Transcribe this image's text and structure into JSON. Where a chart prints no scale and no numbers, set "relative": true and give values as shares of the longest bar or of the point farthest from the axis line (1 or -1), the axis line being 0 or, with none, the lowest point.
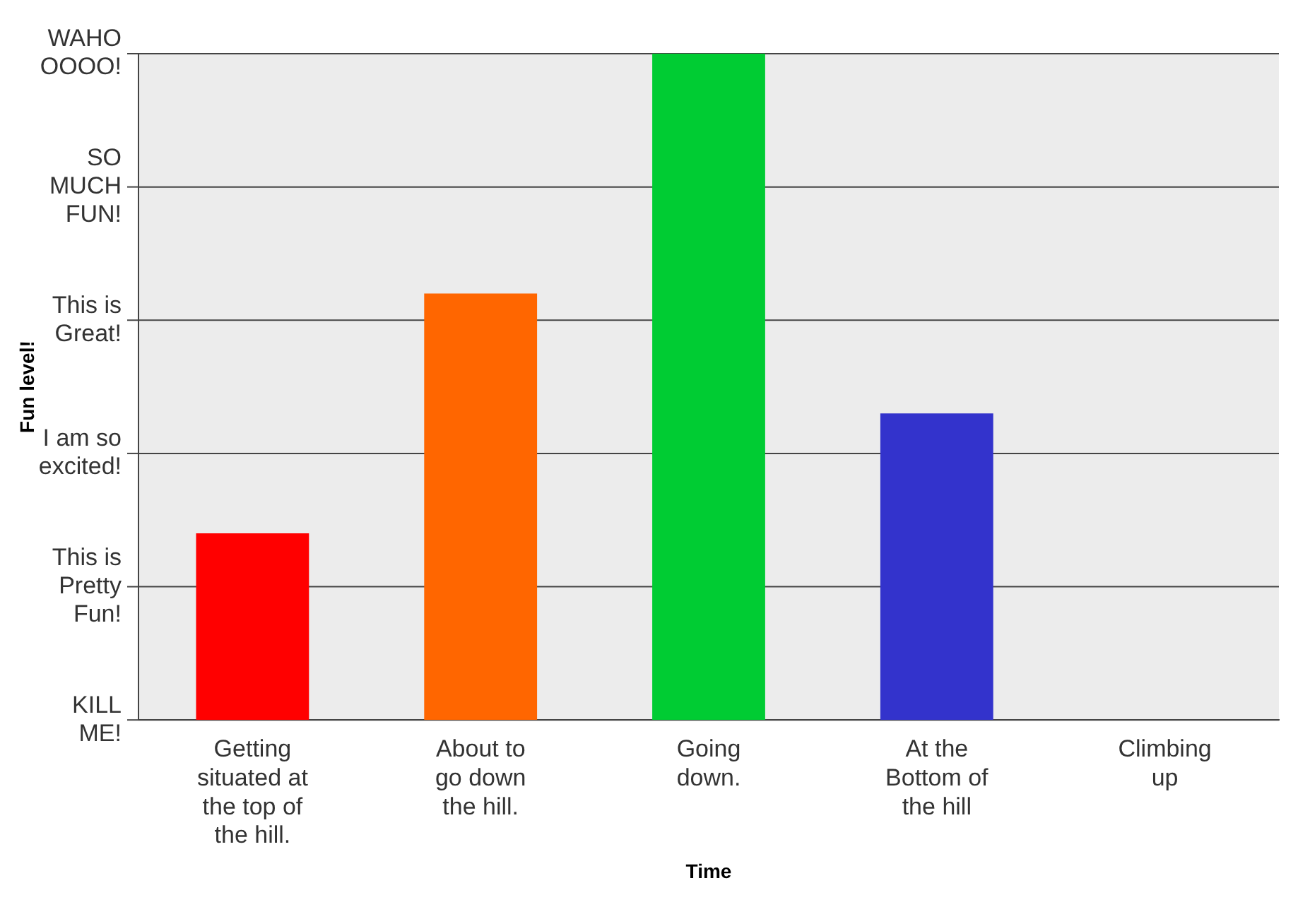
{
  "chart_data": {
    "type": "bar",
    "xlabel": "Time",
    "relative": true,
    "categories": [
      "Getting\nsituated at\nthe top of\nthe hill.",
      "About to\ngo down\nthe hill.",
      "Going\ndown.",
      "At the\nBottom of\nthe hill",
      "Climbing\nup"
    ],
    "values": [
      0.28,
      0.64,
      1,
      0.46,
      0
    ],
    "colors": [
      "#ff0000",
      "#ff6600",
      "#00cc33",
      "#3333cc",
      "#7744ff"
    ],
    "annotations": [
      "KILL\nME!",
      "This is\nPretty\nFun!",
      "I am so\nexcited!",
      "This is\nGreat!",
      "SO\nMUCH\nFUN!",
      "WAHO\nOOOO!",
      "Fun level!"
    ],
    "grid": "y",
    "legend": false
  }
}
